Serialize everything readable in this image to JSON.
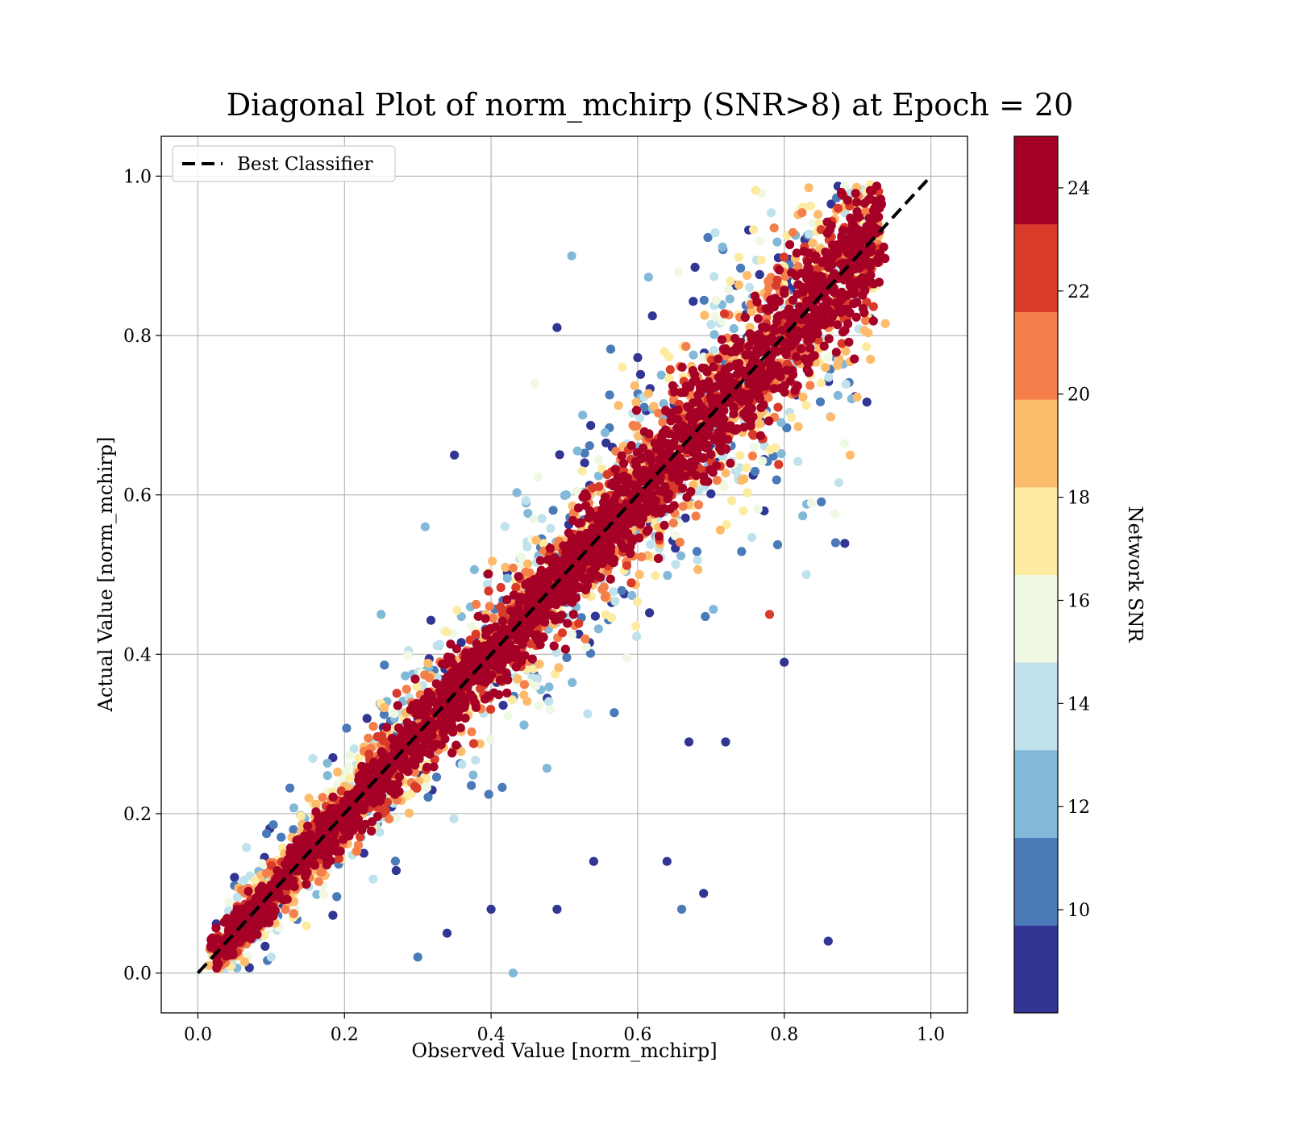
{
  "chart_data": {
    "type": "scatter",
    "title": "Diagonal Plot of norm_mchirp (SNR>8) at Epoch = 20",
    "xlabel": "Observed Value [norm_mchirp]",
    "ylabel": "Actual Value [norm_mchirp]",
    "xlim": [
      -0.05,
      1.05
    ],
    "ylim": [
      -0.05,
      1.05
    ],
    "x_ticks": [
      0.0,
      0.2,
      0.4,
      0.6,
      0.8,
      1.0
    ],
    "y_ticks": [
      0.0,
      0.2,
      0.4,
      0.6,
      0.8,
      1.0
    ],
    "x_tick_labels": [
      "0.0",
      "0.2",
      "0.4",
      "0.6",
      "0.8",
      "1.0"
    ],
    "y_tick_labels": [
      "0.0",
      "0.2",
      "0.4",
      "0.6",
      "0.8",
      "1.0"
    ],
    "grid": true,
    "legend": {
      "placement": "top-left",
      "entries": [
        "Best Classifier"
      ]
    },
    "reference_line": {
      "name": "Best Classifier",
      "x": [
        0.0,
        1.0
      ],
      "y": [
        0.0,
        1.0
      ],
      "style": "dashed",
      "color": "#000000"
    },
    "colorbar": {
      "label": "Network SNR",
      "range": [
        8,
        25
      ],
      "ticks": [
        10,
        12,
        14,
        16,
        18,
        20,
        22,
        24
      ],
      "tick_labels": [
        "10",
        "12",
        "14",
        "16",
        "18",
        "20",
        "22",
        "24"
      ],
      "bins": [
        {
          "from": 8.0,
          "to": 9.7,
          "color": "#313695"
        },
        {
          "from": 9.7,
          "to": 11.4,
          "color": "#4a7ab7"
        },
        {
          "from": 11.4,
          "to": 13.1,
          "color": "#83b9d8"
        },
        {
          "from": 13.1,
          "to": 14.8,
          "color": "#bfe2ec"
        },
        {
          "from": 14.8,
          "to": 16.5,
          "color": "#eef8e2"
        },
        {
          "from": 16.5,
          "to": 18.2,
          "color": "#fdeba1"
        },
        {
          "from": 18.2,
          "to": 19.9,
          "color": "#fdbb6c"
        },
        {
          "from": 19.9,
          "to": 21.6,
          "color": "#f57f4b"
        },
        {
          "from": 21.6,
          "to": 23.3,
          "color": "#d93b2b"
        },
        {
          "from": 23.3,
          "to": 25.0,
          "color": "#a50026"
        }
      ]
    },
    "scatter_density": {
      "x_range": [
        0.02,
        0.93
      ],
      "y_range": [
        0.0,
        0.99
      ],
      "trend": "y = x, spread increasing with value, low-SNR points farther from diagonal"
    },
    "outliers": [
      {
        "x": 0.51,
        "y": 0.9,
        "snr": 12
      },
      {
        "x": 0.35,
        "y": 0.65,
        "snr": 9
      },
      {
        "x": 0.86,
        "y": 0.04,
        "snr": 9
      },
      {
        "x": 0.8,
        "y": 0.39,
        "snr": 9
      },
      {
        "x": 0.78,
        "y": 0.45,
        "snr": 23
      },
      {
        "x": 0.43,
        "y": 0.0,
        "snr": 12
      },
      {
        "x": 0.3,
        "y": 0.02,
        "snr": 11
      },
      {
        "x": 0.64,
        "y": 0.14,
        "snr": 9
      },
      {
        "x": 0.69,
        "y": 0.1,
        "snr": 9
      },
      {
        "x": 0.66,
        "y": 0.08,
        "snr": 10
      },
      {
        "x": 0.49,
        "y": 0.08,
        "snr": 9
      },
      {
        "x": 0.54,
        "y": 0.14,
        "snr": 9
      },
      {
        "x": 0.31,
        "y": 0.56,
        "snr": 13
      },
      {
        "x": 0.25,
        "y": 0.45,
        "snr": 12
      },
      {
        "x": 0.49,
        "y": 0.81,
        "snr": 9
      },
      {
        "x": 0.87,
        "y": 0.54,
        "snr": 10
      },
      {
        "x": 0.83,
        "y": 0.5,
        "snr": 14
      },
      {
        "x": 0.72,
        "y": 0.29,
        "snr": 9
      },
      {
        "x": 0.67,
        "y": 0.29,
        "snr": 9
      },
      {
        "x": 0.46,
        "y": 0.74,
        "snr": 16
      },
      {
        "x": 0.89,
        "y": 0.65,
        "snr": 19
      },
      {
        "x": 0.4,
        "y": 0.08,
        "snr": 9
      },
      {
        "x": 0.34,
        "y": 0.05,
        "snr": 9
      },
      {
        "x": 0.1,
        "y": 0.02,
        "snr": 14
      },
      {
        "x": 0.05,
        "y": 0.12,
        "snr": 9
      }
    ]
  }
}
